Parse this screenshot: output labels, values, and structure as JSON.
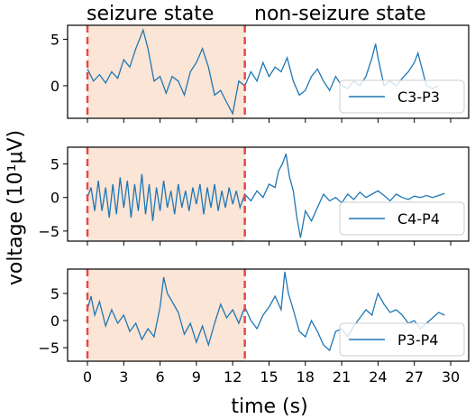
{
  "header": {
    "seizure_label": "seizure state",
    "nonseizure_label": "non-seizure state",
    "seizure_color": "#e8191b",
    "nonseizure_color": "#000000"
  },
  "colors": {
    "line": "#1f77b4",
    "shade": "#fbe5d6",
    "marker": "#e8474b",
    "frame": "#000000"
  },
  "chart_data": {
    "type": "line",
    "xlabel": "time (s)",
    "ylabel": "voltage (10¹μV)",
    "x_range": [
      0,
      30
    ],
    "x_ticks": [
      0,
      3,
      6,
      9,
      12,
      15,
      18,
      21,
      24,
      27,
      30
    ],
    "seizure_interval": [
      0,
      13
    ],
    "panels": [
      {
        "name": "C3-P3",
        "ylim": [
          -3.5,
          6.5
        ],
        "yticks": [
          0,
          5
        ],
        "points": [
          [
            0,
            1.8
          ],
          [
            0.5,
            0.5
          ],
          [
            1,
            1.2
          ],
          [
            1.5,
            0.3
          ],
          [
            2,
            1.5
          ],
          [
            2.5,
            0.8
          ],
          [
            3,
            2.8
          ],
          [
            3.5,
            2.0
          ],
          [
            4,
            4.0
          ],
          [
            4.3,
            5.0
          ],
          [
            4.6,
            6.0
          ],
          [
            5,
            4.0
          ],
          [
            5.5,
            0.5
          ],
          [
            6,
            1.0
          ],
          [
            6.5,
            -0.8
          ],
          [
            7,
            1.0
          ],
          [
            7.5,
            0.5
          ],
          [
            8,
            -1.0
          ],
          [
            8.5,
            1.5
          ],
          [
            9,
            2.5
          ],
          [
            9.5,
            4.0
          ],
          [
            10,
            2.0
          ],
          [
            10.5,
            -1.0
          ],
          [
            11,
            -0.5
          ],
          [
            11.5,
            -1.8
          ],
          [
            12,
            -3.0
          ],
          [
            12.5,
            0.5
          ],
          [
            13,
            0.0
          ],
          [
            13.5,
            1.5
          ],
          [
            14,
            0.5
          ],
          [
            14.5,
            2.5
          ],
          [
            15,
            1.0
          ],
          [
            15.5,
            2.0
          ],
          [
            16,
            1.5
          ],
          [
            16.5,
            3.0
          ],
          [
            17,
            0.5
          ],
          [
            17.5,
            -1.0
          ],
          [
            18,
            -0.5
          ],
          [
            18.5,
            1.0
          ],
          [
            19,
            1.8
          ],
          [
            19.5,
            0.5
          ],
          [
            20,
            -0.5
          ],
          [
            20.5,
            1.0
          ],
          [
            21,
            0.0
          ],
          [
            21.5,
            -0.3
          ],
          [
            22,
            0.5
          ],
          [
            22.5,
            0.0
          ],
          [
            23,
            1.0
          ],
          [
            23.5,
            3.0
          ],
          [
            23.8,
            4.5
          ],
          [
            24,
            3.0
          ],
          [
            24.5,
            0.0
          ],
          [
            25,
            0.5
          ],
          [
            25.5,
            0.0
          ],
          [
            26,
            0.8
          ],
          [
            26.5,
            1.5
          ],
          [
            27,
            2.5
          ],
          [
            27.3,
            3.5
          ],
          [
            27.6,
            2.0
          ],
          [
            28,
            0.0
          ],
          [
            28.5,
            -0.3
          ],
          [
            29,
            0.0
          ]
        ]
      },
      {
        "name": "C4-P4",
        "ylim": [
          -6.5,
          7.5
        ],
        "yticks": [
          -5,
          0,
          5
        ],
        "points": [
          [
            0,
            0.0
          ],
          [
            0.3,
            1.5
          ],
          [
            0.6,
            -2.0
          ],
          [
            0.9,
            2.5
          ],
          [
            1.2,
            -2.0
          ],
          [
            1.5,
            1.5
          ],
          [
            1.8,
            -3.0
          ],
          [
            2.1,
            2.0
          ],
          [
            2.4,
            -2.5
          ],
          [
            2.7,
            3.0
          ],
          [
            3,
            -1.5
          ],
          [
            3.3,
            2.5
          ],
          [
            3.6,
            -3.0
          ],
          [
            3.9,
            2.0
          ],
          [
            4.2,
            -2.0
          ],
          [
            4.5,
            3.5
          ],
          [
            4.8,
            -2.5
          ],
          [
            5.1,
            2.0
          ],
          [
            5.4,
            -3.5
          ],
          [
            5.7,
            1.5
          ],
          [
            6,
            -2.0
          ],
          [
            6.3,
            2.5
          ],
          [
            6.6,
            -1.5
          ],
          [
            6.9,
            1.0
          ],
          [
            7.2,
            -2.5
          ],
          [
            7.5,
            2.0
          ],
          [
            7.8,
            -1.5
          ],
          [
            8.1,
            1.0
          ],
          [
            8.4,
            -2.0
          ],
          [
            8.7,
            1.5
          ],
          [
            9,
            -1.0
          ],
          [
            9.3,
            2.0
          ],
          [
            9.6,
            -2.5
          ],
          [
            9.9,
            1.5
          ],
          [
            10.2,
            -1.5
          ],
          [
            10.5,
            2.0
          ],
          [
            10.8,
            -2.0
          ],
          [
            11.1,
            1.0
          ],
          [
            11.4,
            -1.5
          ],
          [
            11.7,
            1.5
          ],
          [
            12,
            -1.0
          ],
          [
            12.3,
            1.0
          ],
          [
            12.6,
            -1.5
          ],
          [
            13,
            0.5
          ],
          [
            13.5,
            -0.5
          ],
          [
            14,
            1.0
          ],
          [
            14.5,
            0.0
          ],
          [
            15,
            2.0
          ],
          [
            15.5,
            1.5
          ],
          [
            15.8,
            4.0
          ],
          [
            16.1,
            5.0
          ],
          [
            16.4,
            6.5
          ],
          [
            16.7,
            3.0
          ],
          [
            17,
            1.0
          ],
          [
            17.3,
            -3.0
          ],
          [
            17.6,
            -6.0
          ],
          [
            18,
            -2.0
          ],
          [
            18.5,
            -3.5
          ],
          [
            19,
            -1.5
          ],
          [
            19.5,
            0.5
          ],
          [
            20,
            -0.5
          ],
          [
            20.5,
            0.0
          ],
          [
            21,
            -0.8
          ],
          [
            21.5,
            0.5
          ],
          [
            22,
            -0.3
          ],
          [
            22.5,
            0.8
          ],
          [
            23,
            0.0
          ],
          [
            23.5,
            0.5
          ],
          [
            24,
            1.0
          ],
          [
            24.5,
            0.3
          ],
          [
            25,
            -0.5
          ],
          [
            25.5,
            0.5
          ],
          [
            26,
            0.0
          ],
          [
            26.5,
            -0.3
          ],
          [
            27,
            0.2
          ],
          [
            27.5,
            0.0
          ],
          [
            28,
            0.3
          ],
          [
            28.5,
            0.0
          ],
          [
            29,
            0.3
          ],
          [
            29.5,
            0.6
          ]
        ]
      },
      {
        "name": "P3-P4",
        "ylim": [
          -7.5,
          9.5
        ],
        "yticks": [
          -5,
          0,
          5
        ],
        "points": [
          [
            0,
            2.0
          ],
          [
            0.3,
            4.5
          ],
          [
            0.6,
            1.0
          ],
          [
            1,
            3.5
          ],
          [
            1.5,
            -1.0
          ],
          [
            2,
            2.0
          ],
          [
            2.5,
            -0.5
          ],
          [
            3,
            1.0
          ],
          [
            3.5,
            -2.0
          ],
          [
            4,
            -0.5
          ],
          [
            4.5,
            -3.5
          ],
          [
            5,
            -1.5
          ],
          [
            5.5,
            -3.0
          ],
          [
            6,
            2.5
          ],
          [
            6.3,
            8.0
          ],
          [
            6.6,
            5.0
          ],
          [
            7,
            3.5
          ],
          [
            7.5,
            1.5
          ],
          [
            8,
            -2.5
          ],
          [
            8.5,
            -0.5
          ],
          [
            9,
            -4.0
          ],
          [
            9.5,
            -1.0
          ],
          [
            10,
            -4.5
          ],
          [
            10.5,
            -0.5
          ],
          [
            11,
            3.0
          ],
          [
            11.5,
            0.5
          ],
          [
            12,
            2.0
          ],
          [
            12.5,
            -0.5
          ],
          [
            13,
            2.5
          ],
          [
            13.5,
            0.0
          ],
          [
            14,
            -1.5
          ],
          [
            14.5,
            1.0
          ],
          [
            15,
            2.5
          ],
          [
            15.5,
            4.5
          ],
          [
            16,
            2.0
          ],
          [
            16.3,
            9.0
          ],
          [
            16.6,
            5.0
          ],
          [
            17,
            2.0
          ],
          [
            17.5,
            -2.0
          ],
          [
            18,
            -3.0
          ],
          [
            18.5,
            0.0
          ],
          [
            19,
            -2.0
          ],
          [
            19.5,
            -4.5
          ],
          [
            20,
            -5.5
          ],
          [
            20.5,
            -2.0
          ],
          [
            21,
            -1.5
          ],
          [
            21.5,
            -3.0
          ],
          [
            22,
            -1.0
          ],
          [
            22.5,
            0.5
          ],
          [
            23,
            2.0
          ],
          [
            23.5,
            1.0
          ],
          [
            23.8,
            3.5
          ],
          [
            24,
            5.0
          ],
          [
            24.5,
            3.0
          ],
          [
            25,
            1.5
          ],
          [
            25.5,
            2.0
          ],
          [
            26,
            1.0
          ],
          [
            26.5,
            -0.5
          ],
          [
            27,
            0.0
          ],
          [
            27.5,
            -1.5
          ],
          [
            28,
            -0.5
          ],
          [
            28.5,
            0.5
          ],
          [
            29,
            1.5
          ],
          [
            29.5,
            1.0
          ]
        ]
      }
    ]
  }
}
